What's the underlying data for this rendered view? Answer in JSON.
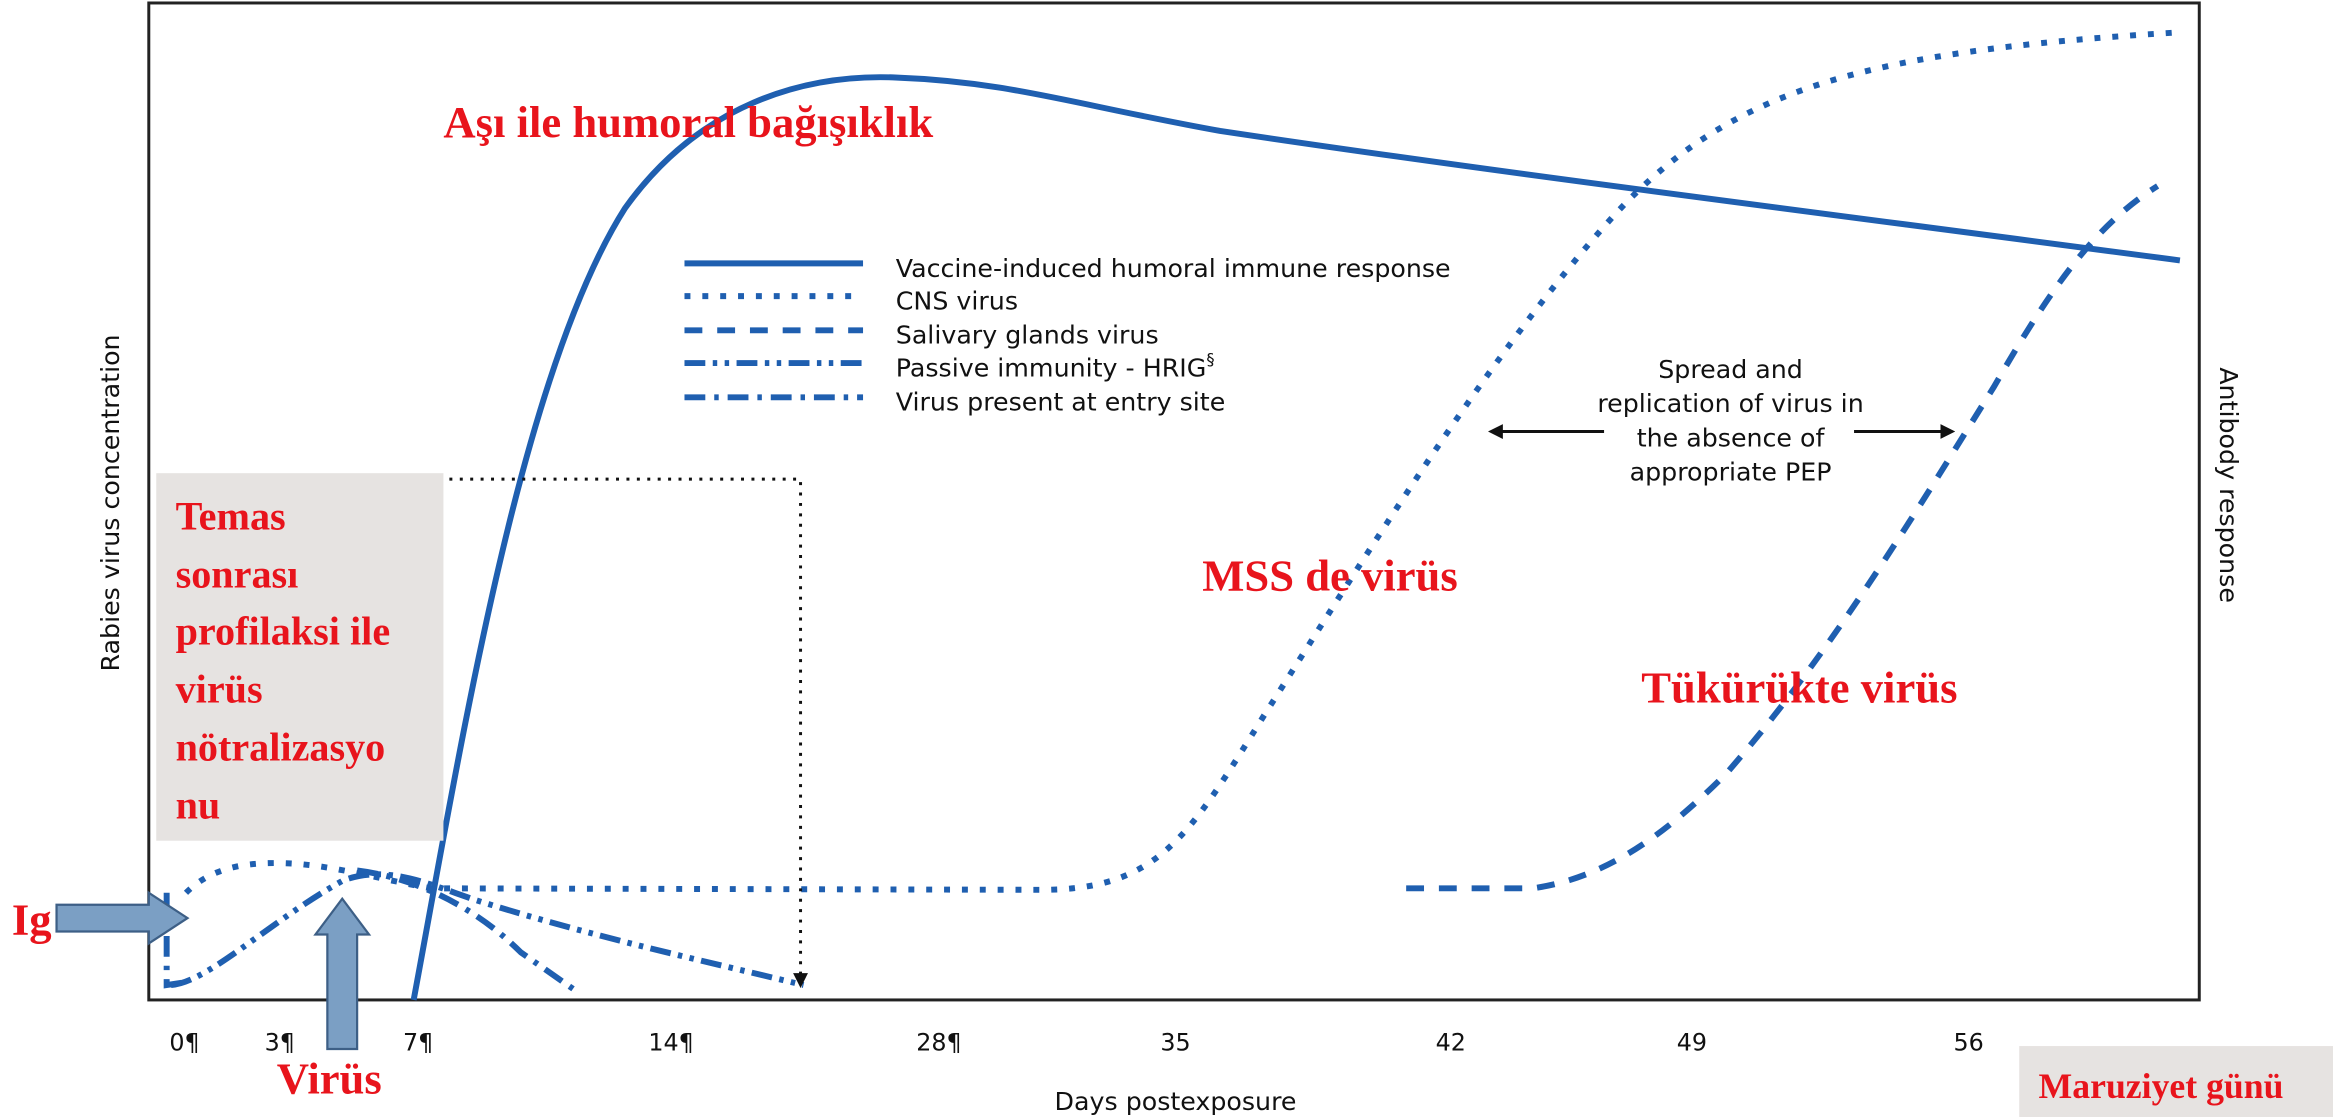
{
  "plot": {
    "y_axis_label": "Rabies virus concentration",
    "y2_axis_label": "Antibody response",
    "x_axis_label": "Days postexposure",
    "x_ticks": [
      "0¶",
      "3¶",
      "7¶",
      "14¶",
      "28¶",
      "35",
      "42",
      "49",
      "56"
    ]
  },
  "legend": [
    "Vaccine-induced humoral  immune response",
    "CNS virus",
    "Salivary glands virus",
    "Passive immunity - HRIG",
    "Virus present at entry site"
  ],
  "legend_footnote": "§",
  "annotation": {
    "lines": [
      "Spread and",
      "replication of virus in",
      "the absence of",
      "appropriate PEP"
    ]
  },
  "labels": {
    "vaccine": "Aşı ile humoral bağışıklık",
    "cns": "MSS de virüs",
    "saliva": "Tükürükte virüs",
    "pep_box": [
      "Temas",
      "sonrası",
      "profilaksi ile",
      "virüs",
      "nötralizasyo",
      "nu"
    ],
    "ig": "Ig",
    "virus": "Virüs",
    "exposure_day": "Maruziyet günü"
  }
}
